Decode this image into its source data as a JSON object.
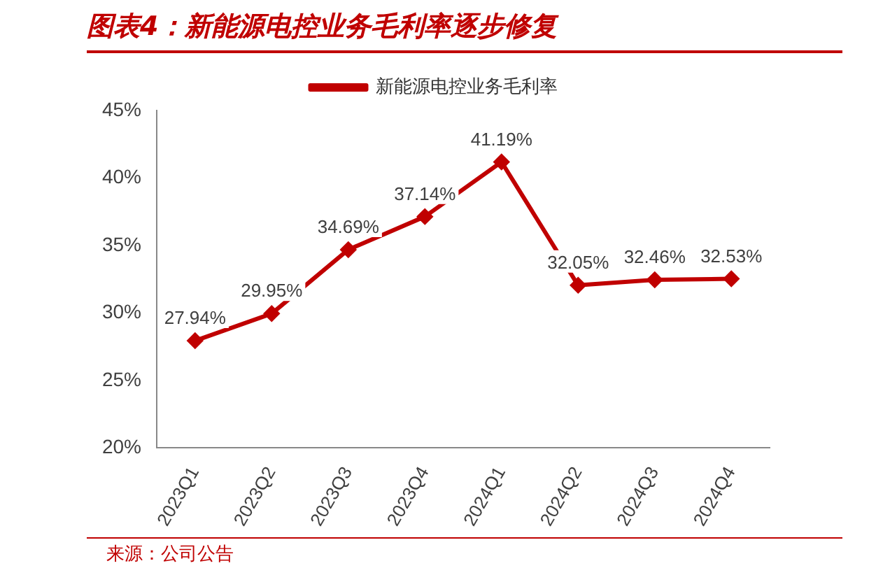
{
  "chart_data": {
    "type": "line",
    "title": "图表4：新能源电控业务毛利率逐步修复",
    "categories": [
      "2023Q1",
      "2023Q2",
      "2023Q3",
      "2023Q4",
      "2024Q1",
      "2024Q2",
      "2024Q3",
      "2024Q4"
    ],
    "series": [
      {
        "name": "新能源电控业务毛利率",
        "color": "#c00000",
        "values": [
          27.94,
          29.95,
          34.69,
          37.14,
          41.19,
          32.05,
          32.46,
          32.53
        ],
        "value_labels": [
          "27.94%",
          "29.95%",
          "34.69%",
          "37.14%",
          "41.19%",
          "32.05%",
          "32.46%",
          "32.53%"
        ]
      }
    ],
    "ylim": [
      20,
      45
    ],
    "yticks": [
      {
        "value": 20,
        "label": "20%"
      },
      {
        "value": 25,
        "label": "25%"
      },
      {
        "value": 30,
        "label": "30%"
      },
      {
        "value": 35,
        "label": "35%"
      },
      {
        "value": 40,
        "label": "40%"
      },
      {
        "value": 45,
        "label": "45%"
      }
    ],
    "grid": false,
    "legend": "top",
    "marker": "diamond",
    "line_style": "solid",
    "annotations": [
      "来源：公司公告"
    ]
  }
}
